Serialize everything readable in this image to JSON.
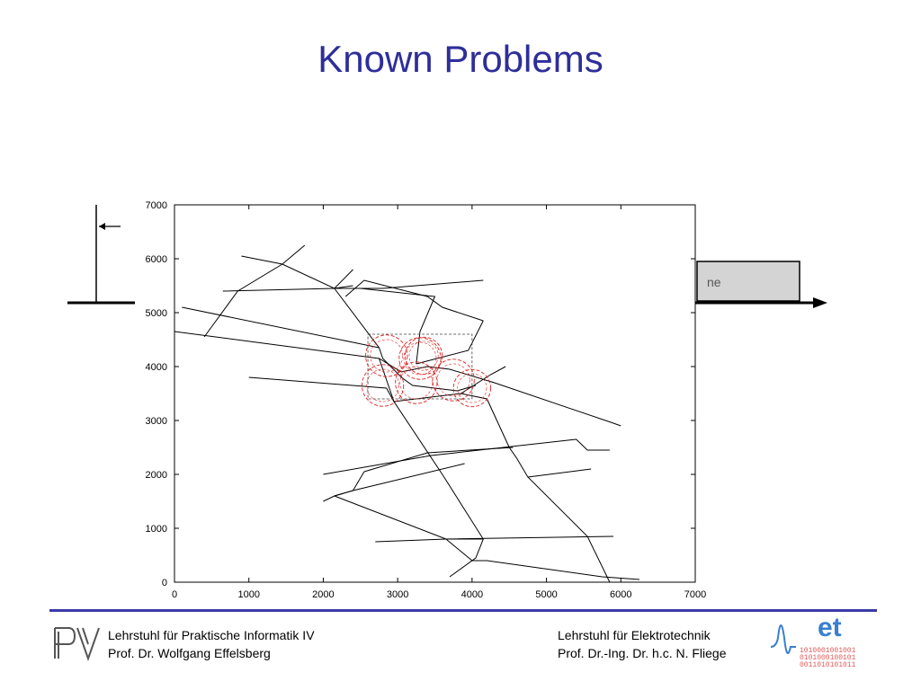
{
  "slide": {
    "title": "Known Problems"
  },
  "background_figure": {
    "partial_label": "ne",
    "colors": {
      "box_fill": "#d4d4d4",
      "stroke": "#000000"
    }
  },
  "chart_data": {
    "type": "line",
    "description_kind": "road-network-map",
    "xlim": [
      0,
      7000
    ],
    "ylim": [
      0,
      7000
    ],
    "xticks": [
      0,
      1000,
      2000,
      3000,
      4000,
      5000,
      6000,
      7000
    ],
    "yticks": [
      0,
      1000,
      2000,
      3000,
      4000,
      5000,
      6000,
      7000
    ],
    "grid": false,
    "segments": [
      [
        [
          1750,
          6250
        ],
        [
          1450,
          5900
        ],
        [
          850,
          5400
        ],
        [
          400,
          4550
        ]
      ],
      [
        [
          900,
          6050
        ],
        [
          1450,
          5900
        ],
        [
          2150,
          5450
        ],
        [
          2400,
          5500
        ]
      ],
      [
        [
          650,
          5400
        ],
        [
          2150,
          5450
        ],
        [
          2800,
          5450
        ],
        [
          4150,
          5600
        ]
      ],
      [
        [
          2150,
          5450
        ],
        [
          2400,
          5800
        ]
      ],
      [
        [
          2150,
          5450
        ],
        [
          2750,
          4350
        ],
        [
          2800,
          4150
        ],
        [
          3050,
          3800
        ],
        [
          3200,
          3650
        ],
        [
          3800,
          3550
        ],
        [
          4050,
          3650
        ]
      ],
      [
        [
          2300,
          5300
        ],
        [
          2550,
          5600
        ],
        [
          3400,
          5300
        ],
        [
          3600,
          5100
        ],
        [
          4150,
          4850
        ]
      ],
      [
        [
          2500,
          5450
        ],
        [
          3500,
          5300
        ],
        [
          3300,
          4650
        ],
        [
          3250,
          4050
        ]
      ],
      [
        [
          4150,
          4850
        ],
        [
          3950,
          4300
        ],
        [
          3250,
          4050
        ]
      ],
      [
        [
          100,
          5100
        ],
        [
          2750,
          4350
        ]
      ],
      [
        [
          0,
          4650
        ],
        [
          2750,
          4150
        ],
        [
          3050,
          3900
        ],
        [
          3400,
          4000
        ],
        [
          3700,
          3950
        ],
        [
          4300,
          3700
        ],
        [
          5900,
          2950
        ],
        [
          6000,
          2900
        ]
      ],
      [
        [
          2750,
          4150
        ],
        [
          2900,
          3550
        ],
        [
          2950,
          3350
        ],
        [
          3600,
          2000
        ],
        [
          4150,
          800
        ],
        [
          4050,
          450
        ],
        [
          3700,
          100
        ]
      ],
      [
        [
          1000,
          3800
        ],
        [
          2850,
          3600
        ],
        [
          2950,
          3350
        ],
        [
          3850,
          3500
        ],
        [
          4200,
          3400
        ],
        [
          4500,
          2500
        ],
        [
          4600,
          2300
        ],
        [
          4750,
          1950
        ],
        [
          5550,
          850
        ],
        [
          5850,
          0
        ]
      ],
      [
        [
          3850,
          3500
        ],
        [
          4250,
          3850
        ],
        [
          4450,
          4000
        ]
      ],
      [
        [
          2000,
          2000
        ],
        [
          3450,
          2350
        ],
        [
          5400,
          2650
        ],
        [
          5550,
          2450
        ],
        [
          5850,
          2450
        ]
      ],
      [
        [
          2550,
          2050
        ],
        [
          3400,
          2400
        ],
        [
          4550,
          2500
        ]
      ],
      [
        [
          2000,
          1500
        ],
        [
          2150,
          1600
        ],
        [
          2400,
          1700
        ],
        [
          3900,
          2200
        ]
      ],
      [
        [
          2150,
          1600
        ],
        [
          2400,
          1700
        ],
        [
          2550,
          2050
        ]
      ],
      [
        [
          2150,
          1600
        ],
        [
          3650,
          800
        ],
        [
          4150,
          800
        ]
      ],
      [
        [
          2700,
          750
        ],
        [
          3650,
          800
        ],
        [
          5900,
          850
        ]
      ],
      [
        [
          3650,
          800
        ],
        [
          4000,
          400
        ],
        [
          4200,
          400
        ],
        [
          5750,
          100
        ],
        [
          6250,
          50
        ]
      ],
      [
        [
          4750,
          1950
        ],
        [
          5600,
          2100
        ]
      ]
    ],
    "selection_box": {
      "x": [
        2600,
        4000
      ],
      "y": [
        3400,
        4600
      ]
    },
    "circles": [
      {
        "x": 2850,
        "y": 4200,
        "r": 280
      },
      {
        "x": 3300,
        "y": 4150,
        "r": 280
      },
      {
        "x": 3350,
        "y": 4200,
        "r": 250
      },
      {
        "x": 3250,
        "y": 3700,
        "r": 280
      },
      {
        "x": 2800,
        "y": 3650,
        "r": 280
      },
      {
        "x": 3750,
        "y": 3750,
        "r": 280
      },
      {
        "x": 4000,
        "y": 3600,
        "r": 250
      }
    ],
    "colors": {
      "lines": "#000000",
      "circles": "#dd2222",
      "box": "#404040"
    }
  },
  "footer": {
    "left_line1": "Lehrstuhl für Praktische Informatik IV",
    "left_line2": "Prof. Dr. Wolfgang Effelsberg",
    "right_line1": "Lehrstuhl für Elektrotechnik",
    "right_line2": "Prof. Dr.-Ing. Dr. h.c. N. Fliege",
    "left_logo": "pi-logo",
    "right_logo": "et-logo",
    "et_logo_text": "et",
    "binary_lines": [
      "1010001001001",
      "0101000100101",
      "0011010101011"
    ],
    "accent_color": "#3a3aa8"
  }
}
